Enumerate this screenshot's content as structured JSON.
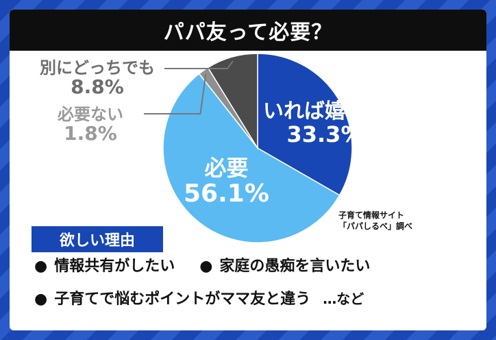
{
  "title": "パパ友って必要？",
  "colors": {
    "background": "#1b49b6",
    "title_bar": "#0e0e0e",
    "accent": "#1846b4"
  },
  "chart_data": {
    "type": "pie",
    "slices": [
      {
        "label": "いれば嬉しい",
        "value": 33.3,
        "display": "33.3%",
        "color": "#1846b4"
      },
      {
        "label": "必要",
        "value": 56.1,
        "display": "56.1%",
        "color": "#5bbaf2"
      },
      {
        "label": "必要ない",
        "value": 1.8,
        "display": "1.8%",
        "color": "#8f8f8f"
      },
      {
        "label": "別にどっちでも",
        "value": 8.8,
        "display": "8.8%",
        "color": "#4b4b4b"
      }
    ]
  },
  "source": {
    "line1": "子育て情報サイト",
    "line2": "「パパしるべ」調べ"
  },
  "reasons": {
    "heading": "欲しい理由",
    "items": [
      "情報共有がしたい",
      "家庭の愚痴を言いたい",
      "子育てで悩むポイントがママ友と違う"
    ],
    "bullet": "●",
    "suffix": "…など"
  }
}
